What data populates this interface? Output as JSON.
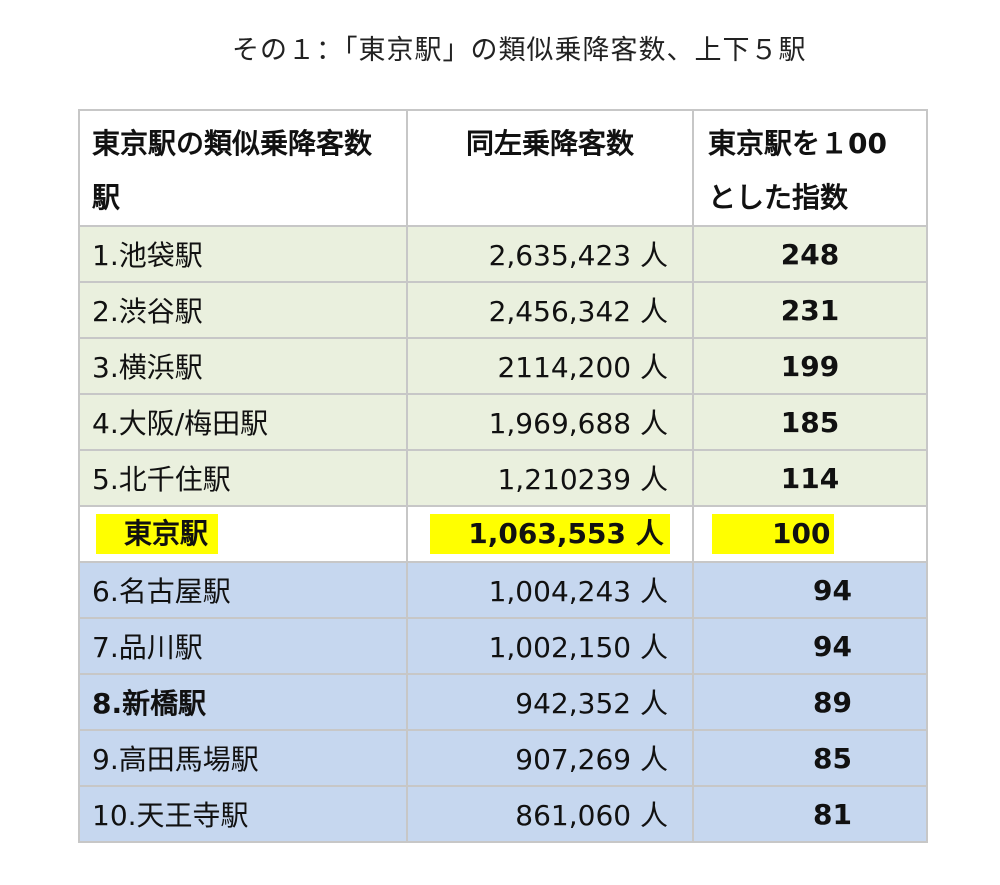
{
  "title": "その１：「東京駅」の類似乗降客数、上下５駅",
  "table": {
    "headers": [
      "東京駅の類似乗降客数駅",
      "同左乗降客数",
      "東京駅を１00とした指数"
    ],
    "rows_upper": [
      {
        "station": "1.池袋駅",
        "passengers": "2,635,423 人",
        "index": "248"
      },
      {
        "station": "2.渋谷駅",
        "passengers": "2,456,342 人",
        "index": "231"
      },
      {
        "station": "3.横浜駅",
        "passengers": "2114,200 人",
        "index": "199"
      },
      {
        "station": "4.大阪/梅田駅",
        "passengers": "1,969,688 人",
        "index": "185"
      },
      {
        "station": "5.北千住駅",
        "passengers": "1,210239 人",
        "index": "114"
      }
    ],
    "tokyo": {
      "station": "東京駅",
      "passengers": "1,063,553 人",
      "index": "100"
    },
    "rows_lower": [
      {
        "station": "6.名古屋駅",
        "passengers": "1,004,243 人",
        "index": "94"
      },
      {
        "station": "7.品川駅",
        "passengers": "1,002,150 人",
        "index": "94"
      },
      {
        "station": "8.新橋駅",
        "passengers": "942,352 人",
        "index": "89"
      },
      {
        "station": "9.高田馬場駅",
        "passengers": "907,269 人",
        "index": "85"
      },
      {
        "station": "10.天王寺駅",
        "passengers": "861,060 人",
        "index": "81"
      }
    ]
  },
  "colors": {
    "upper_bg": "#eaf0de",
    "lower_bg": "#c6d7ef",
    "highlight": "#ffff00"
  }
}
